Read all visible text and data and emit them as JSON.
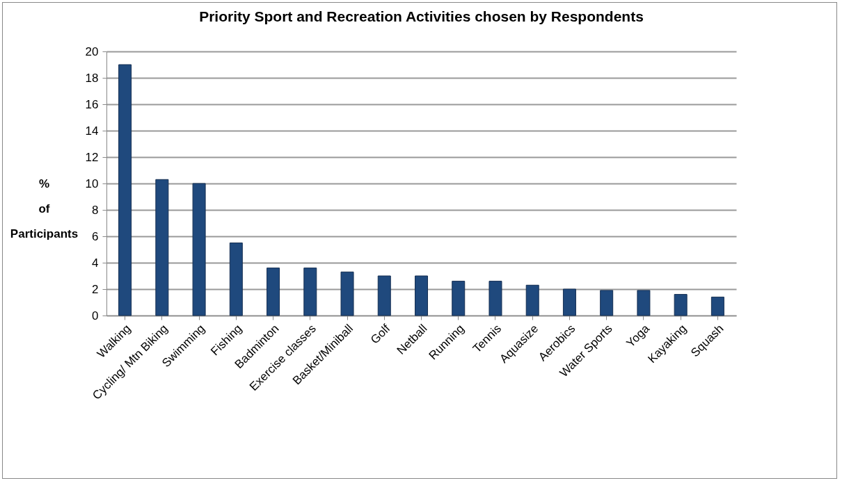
{
  "chart_data": {
    "type": "bar",
    "title": "Priority Sport and Recreation Activities chosen by Respondents",
    "ylabel": "%\nof\nParticipants",
    "categories": [
      "Walking",
      "Cycling/ Mtn Biking",
      "Swimming",
      "Fishing",
      "Badminton",
      "Exercise classes",
      "Basket/Miniball",
      "Golf",
      "Netball",
      "Running",
      "Tennis",
      "Aquasize",
      "Aerobics",
      "Water Sports",
      "Yoga",
      "Kayaking",
      "Squash"
    ],
    "values": [
      19,
      10.3,
      10,
      5.5,
      3.6,
      3.6,
      3.3,
      3.0,
      3.0,
      2.6,
      2.6,
      2.3,
      2.0,
      1.9,
      1.9,
      1.6,
      1.4
    ],
    "color": "#1f497d",
    "ylim": [
      0,
      20
    ],
    "yticks": [
      0,
      2,
      4,
      6,
      8,
      10,
      12,
      14,
      16,
      18,
      20
    ],
    "grid": true
  }
}
